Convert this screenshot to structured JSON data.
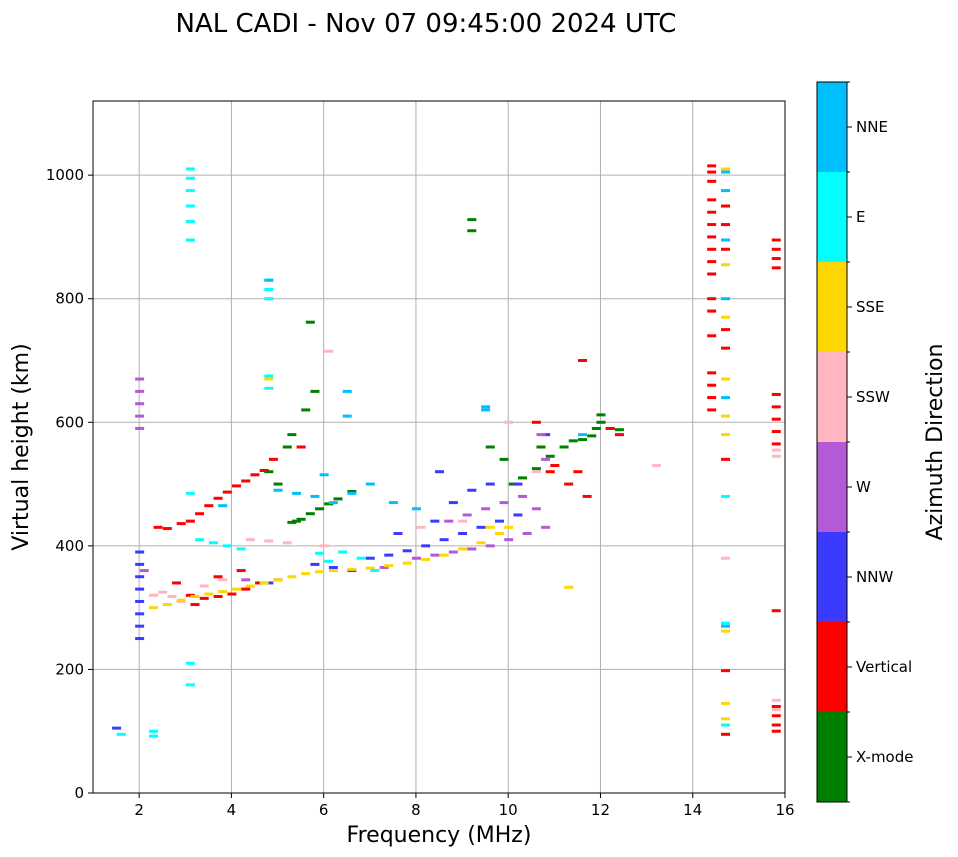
{
  "chart_data": {
    "type": "scatter",
    "title": "NAL CADI - Nov 07 09:45:00 2024 UTC",
    "xlabel": "Frequency (MHz)",
    "ylabel": "Virtual height (km)",
    "xlim": [
      1,
      16
    ],
    "ylim": [
      0,
      1120
    ],
    "xticks": [
      2,
      4,
      6,
      8,
      10,
      12,
      14,
      16
    ],
    "yticks": [
      0,
      200,
      400,
      600,
      800,
      1000
    ],
    "grid": true,
    "colorbar": {
      "label": "Azimuth Direction",
      "categories": [
        "X-mode",
        "Vertical",
        "NNW",
        "W",
        "SSW",
        "SSE",
        "E",
        "NNE"
      ],
      "colors": [
        "#008000",
        "#ff0000",
        "#3b3bff",
        "#b45ad7",
        "#ffb6c1",
        "#ffd700",
        "#00ffff",
        "#00bfff"
      ]
    },
    "series": [
      {
        "name": "X-mode",
        "points": [
          [
            5.3,
            438
          ],
          [
            5.4,
            440
          ],
          [
            5.5,
            443
          ],
          [
            5.7,
            452
          ],
          [
            5.9,
            460
          ],
          [
            6.1,
            468
          ],
          [
            6.3,
            476
          ],
          [
            6.6,
            488
          ],
          [
            5.0,
            500
          ],
          [
            4.8,
            520
          ],
          [
            5.2,
            560
          ],
          [
            5.3,
            580
          ],
          [
            5.6,
            620
          ],
          [
            5.8,
            650
          ],
          [
            5.7,
            762
          ],
          [
            9.2,
            928
          ],
          [
            9.2,
            910
          ],
          [
            10.1,
            500
          ],
          [
            10.3,
            510
          ],
          [
            10.6,
            525
          ],
          [
            10.9,
            545
          ],
          [
            11.2,
            560
          ],
          [
            11.4,
            570
          ],
          [
            11.6,
            572
          ],
          [
            11.8,
            578
          ],
          [
            11.9,
            590
          ],
          [
            12.0,
            600
          ],
          [
            12.0,
            612
          ],
          [
            12.2,
            590
          ],
          [
            12.4,
            588
          ],
          [
            9.6,
            560
          ],
          [
            10.7,
            560
          ],
          [
            9.9,
            540
          ]
        ]
      },
      {
        "name": "Vertical",
        "points": [
          [
            2.4,
            430
          ],
          [
            2.6,
            428
          ],
          [
            2.9,
            436
          ],
          [
            3.1,
            440
          ],
          [
            3.3,
            452
          ],
          [
            3.5,
            465
          ],
          [
            3.7,
            477
          ],
          [
            3.9,
            487
          ],
          [
            4.1,
            497
          ],
          [
            4.3,
            505
          ],
          [
            4.5,
            515
          ],
          [
            4.7,
            522
          ],
          [
            3.1,
            320
          ],
          [
            3.4,
            315
          ],
          [
            3.7,
            318
          ],
          [
            4.0,
            322
          ],
          [
            4.3,
            330
          ],
          [
            4.6,
            340
          ],
          [
            2.8,
            340
          ],
          [
            3.2,
            305
          ],
          [
            4.9,
            540
          ],
          [
            5.5,
            560
          ],
          [
            10.6,
            600
          ],
          [
            11.3,
            500
          ],
          [
            11.5,
            520
          ],
          [
            11.7,
            480
          ],
          [
            12.2,
            590
          ],
          [
            12.4,
            580
          ],
          [
            10.9,
            520
          ],
          [
            11.0,
            530
          ],
          [
            11.6,
            700
          ],
          [
            14.4,
            1015
          ],
          [
            14.4,
            1005
          ],
          [
            14.4,
            990
          ],
          [
            14.4,
            960
          ],
          [
            14.4,
            940
          ],
          [
            14.4,
            920
          ],
          [
            14.4,
            900
          ],
          [
            14.4,
            880
          ],
          [
            14.4,
            860
          ],
          [
            14.4,
            840
          ],
          [
            14.4,
            800
          ],
          [
            14.4,
            780
          ],
          [
            14.4,
            740
          ],
          [
            14.4,
            680
          ],
          [
            14.4,
            660
          ],
          [
            14.4,
            640
          ],
          [
            14.4,
            620
          ],
          [
            14.7,
            950
          ],
          [
            14.7,
            920
          ],
          [
            14.7,
            880
          ],
          [
            14.7,
            750
          ],
          [
            14.7,
            720
          ],
          [
            14.7,
            540
          ],
          [
            14.7,
            198
          ],
          [
            14.7,
            95
          ],
          [
            15.8,
            895
          ],
          [
            15.8,
            880
          ],
          [
            15.8,
            865
          ],
          [
            15.8,
            850
          ],
          [
            15.8,
            645
          ],
          [
            15.8,
            625
          ],
          [
            15.8,
            605
          ],
          [
            15.8,
            585
          ],
          [
            15.8,
            565
          ],
          [
            15.8,
            295
          ],
          [
            15.8,
            140
          ],
          [
            15.8,
            125
          ],
          [
            15.8,
            110
          ],
          [
            15.8,
            100
          ],
          [
            3.7,
            350
          ],
          [
            4.2,
            360
          ]
        ]
      },
      {
        "name": "NNW",
        "points": [
          [
            2.0,
            250
          ],
          [
            2.0,
            270
          ],
          [
            2.0,
            290
          ],
          [
            2.0,
            310
          ],
          [
            2.0,
            330
          ],
          [
            2.0,
            350
          ],
          [
            2.0,
            370
          ],
          [
            2.0,
            390
          ],
          [
            5.8,
            370
          ],
          [
            6.2,
            365
          ],
          [
            6.6,
            360
          ],
          [
            7.0,
            380
          ],
          [
            7.4,
            385
          ],
          [
            7.8,
            392
          ],
          [
            8.2,
            400
          ],
          [
            8.6,
            410
          ],
          [
            9.0,
            420
          ],
          [
            9.4,
            430
          ],
          [
            9.8,
            440
          ],
          [
            10.2,
            450
          ],
          [
            7.6,
            420
          ],
          [
            8.4,
            440
          ],
          [
            8.8,
            470
          ],
          [
            9.2,
            490
          ],
          [
            9.6,
            500
          ],
          [
            8.5,
            520
          ],
          [
            10.2,
            500
          ],
          [
            10.8,
            580
          ],
          [
            1.5,
            105
          ],
          [
            4.8,
            340
          ],
          [
            5.0,
            345
          ]
        ]
      },
      {
        "name": "W",
        "points": [
          [
            2.0,
            590
          ],
          [
            2.0,
            610
          ],
          [
            2.0,
            630
          ],
          [
            2.0,
            650
          ],
          [
            2.0,
            670
          ],
          [
            8.0,
            380
          ],
          [
            8.4,
            385
          ],
          [
            8.8,
            390
          ],
          [
            9.2,
            395
          ],
          [
            9.6,
            400
          ],
          [
            10.0,
            410
          ],
          [
            10.4,
            420
          ],
          [
            10.8,
            430
          ],
          [
            10.6,
            460
          ],
          [
            10.3,
            480
          ],
          [
            9.9,
            470
          ],
          [
            9.5,
            460
          ],
          [
            9.1,
            450
          ],
          [
            8.7,
            440
          ],
          [
            10.8,
            540
          ],
          [
            10.7,
            580
          ],
          [
            2.1,
            360
          ],
          [
            4.3,
            345
          ],
          [
            7.3,
            365
          ]
        ]
      },
      {
        "name": "SSW",
        "points": [
          [
            2.3,
            320
          ],
          [
            2.5,
            325
          ],
          [
            2.7,
            318
          ],
          [
            2.9,
            310
          ],
          [
            3.4,
            335
          ],
          [
            3.8,
            345
          ],
          [
            4.4,
            410
          ],
          [
            4.8,
            408
          ],
          [
            5.2,
            405
          ],
          [
            6.0,
            400
          ],
          [
            8.1,
            430
          ],
          [
            9.0,
            440
          ],
          [
            10.0,
            600
          ],
          [
            10.6,
            520
          ],
          [
            13.2,
            530
          ],
          [
            6.1,
            715
          ],
          [
            15.8,
            150
          ],
          [
            15.8,
            135
          ],
          [
            15.8,
            545
          ],
          [
            15.8,
            555
          ],
          [
            14.7,
            380
          ]
        ]
      },
      {
        "name": "SSE",
        "points": [
          [
            2.3,
            300
          ],
          [
            2.6,
            305
          ],
          [
            2.9,
            312
          ],
          [
            3.2,
            318
          ],
          [
            3.5,
            322
          ],
          [
            3.8,
            326
          ],
          [
            4.1,
            330
          ],
          [
            4.4,
            335
          ],
          [
            4.7,
            340
          ],
          [
            5.0,
            345
          ],
          [
            5.3,
            350
          ],
          [
            5.6,
            355
          ],
          [
            5.9,
            358
          ],
          [
            6.2,
            360
          ],
          [
            6.6,
            362
          ],
          [
            7.0,
            364
          ],
          [
            7.4,
            368
          ],
          [
            7.8,
            372
          ],
          [
            8.2,
            378
          ],
          [
            8.6,
            385
          ],
          [
            9.0,
            395
          ],
          [
            9.4,
            405
          ],
          [
            9.8,
            420
          ],
          [
            10.0,
            430
          ],
          [
            9.6,
            430
          ],
          [
            11.3,
            333
          ],
          [
            14.7,
            1010
          ],
          [
            14.7,
            855
          ],
          [
            14.7,
            770
          ],
          [
            14.7,
            670
          ],
          [
            14.7,
            610
          ],
          [
            14.7,
            580
          ],
          [
            14.7,
            145
          ],
          [
            14.7,
            262
          ],
          [
            14.7,
            120
          ],
          [
            4.8,
            670
          ]
        ]
      },
      {
        "name": "E",
        "points": [
          [
            3.1,
            1010
          ],
          [
            3.1,
            995
          ],
          [
            3.1,
            975
          ],
          [
            3.1,
            950
          ],
          [
            3.1,
            925
          ],
          [
            3.1,
            895
          ],
          [
            3.1,
            485
          ],
          [
            3.1,
            210
          ],
          [
            3.1,
            175
          ],
          [
            4.8,
            830
          ],
          [
            4.8,
            815
          ],
          [
            4.8,
            800
          ],
          [
            4.8,
            675
          ],
          [
            4.8,
            655
          ],
          [
            2.3,
            100
          ],
          [
            2.3,
            92
          ],
          [
            1.6,
            95
          ],
          [
            3.3,
            410
          ],
          [
            3.6,
            405
          ],
          [
            3.9,
            400
          ],
          [
            4.2,
            395
          ],
          [
            6.1,
            375
          ],
          [
            6.4,
            390
          ],
          [
            6.8,
            380
          ],
          [
            7.1,
            360
          ],
          [
            14.7,
            275
          ],
          [
            14.7,
            110
          ],
          [
            14.7,
            480
          ],
          [
            5.9,
            388
          ]
        ]
      },
      {
        "name": "NNE",
        "points": [
          [
            5.0,
            490
          ],
          [
            5.4,
            485
          ],
          [
            5.8,
            480
          ],
          [
            6.2,
            470
          ],
          [
            6.6,
            485
          ],
          [
            6.5,
            650
          ],
          [
            6.5,
            610
          ],
          [
            9.5,
            620
          ],
          [
            9.5,
            625
          ],
          [
            6.0,
            515
          ],
          [
            7.0,
            500
          ],
          [
            7.5,
            470
          ],
          [
            8.0,
            460
          ],
          [
            11.6,
            580
          ],
          [
            14.7,
            1005
          ],
          [
            14.7,
            975
          ],
          [
            14.7,
            895
          ],
          [
            14.7,
            800
          ],
          [
            14.7,
            640
          ],
          [
            14.7,
            270
          ],
          [
            4.8,
            830
          ],
          [
            3.8,
            465
          ]
        ]
      }
    ]
  }
}
